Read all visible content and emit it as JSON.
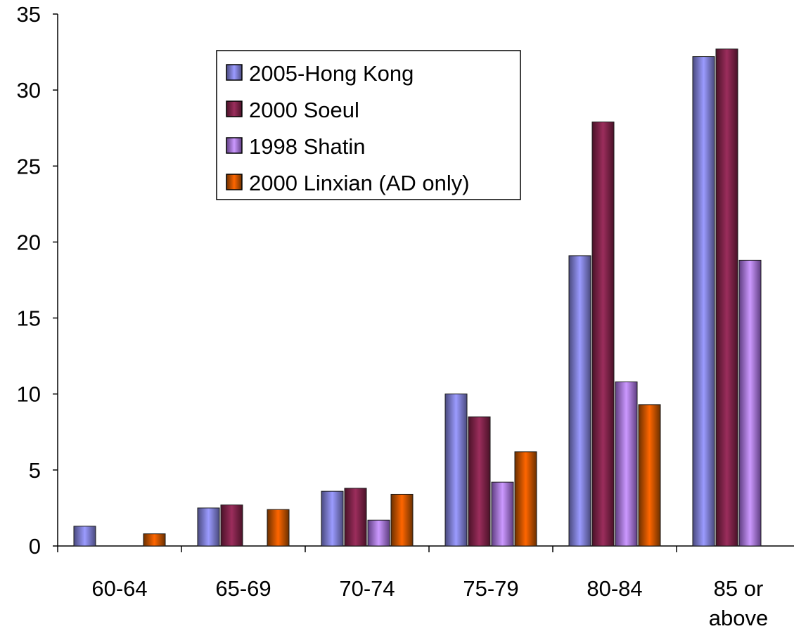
{
  "chart_data": {
    "type": "bar",
    "title": "",
    "xlabel": "",
    "ylabel": "",
    "ylim": [
      0,
      35
    ],
    "yticks": [
      0,
      5,
      10,
      15,
      20,
      25,
      30,
      35
    ],
    "grid": false,
    "legend_position": "top-center",
    "categories": [
      [
        "60-64"
      ],
      [
        "65-69"
      ],
      [
        "70-74"
      ],
      [
        "75-79"
      ],
      [
        "80-84"
      ],
      [
        "85 or",
        "above"
      ]
    ],
    "series": [
      {
        "name": "2005-Hong Kong",
        "colors": [
          "#4a4a7e",
          "#9b9bff",
          "#4a4a7e"
        ],
        "values": [
          1.3,
          2.5,
          3.6,
          10.0,
          19.1,
          32.2
        ]
      },
      {
        "name": "2000 Soeul",
        "colors": [
          "#4a1228",
          "#9b2d5c",
          "#4a1228"
        ],
        "values": [
          null,
          2.7,
          3.8,
          8.5,
          27.9,
          32.7
        ]
      },
      {
        "name": "1998 Shatin",
        "colors": [
          "#5f3e82",
          "#cc99ff",
          "#5f3e82"
        ],
        "values": [
          null,
          null,
          1.7,
          4.2,
          10.8,
          18.8
        ]
      },
      {
        "name": "2000 Linxian (AD only)",
        "colors": [
          "#6b3000",
          "#ff6600",
          "#6b3000"
        ],
        "values": [
          0.8,
          2.4,
          3.4,
          6.2,
          9.3,
          null
        ]
      }
    ]
  }
}
